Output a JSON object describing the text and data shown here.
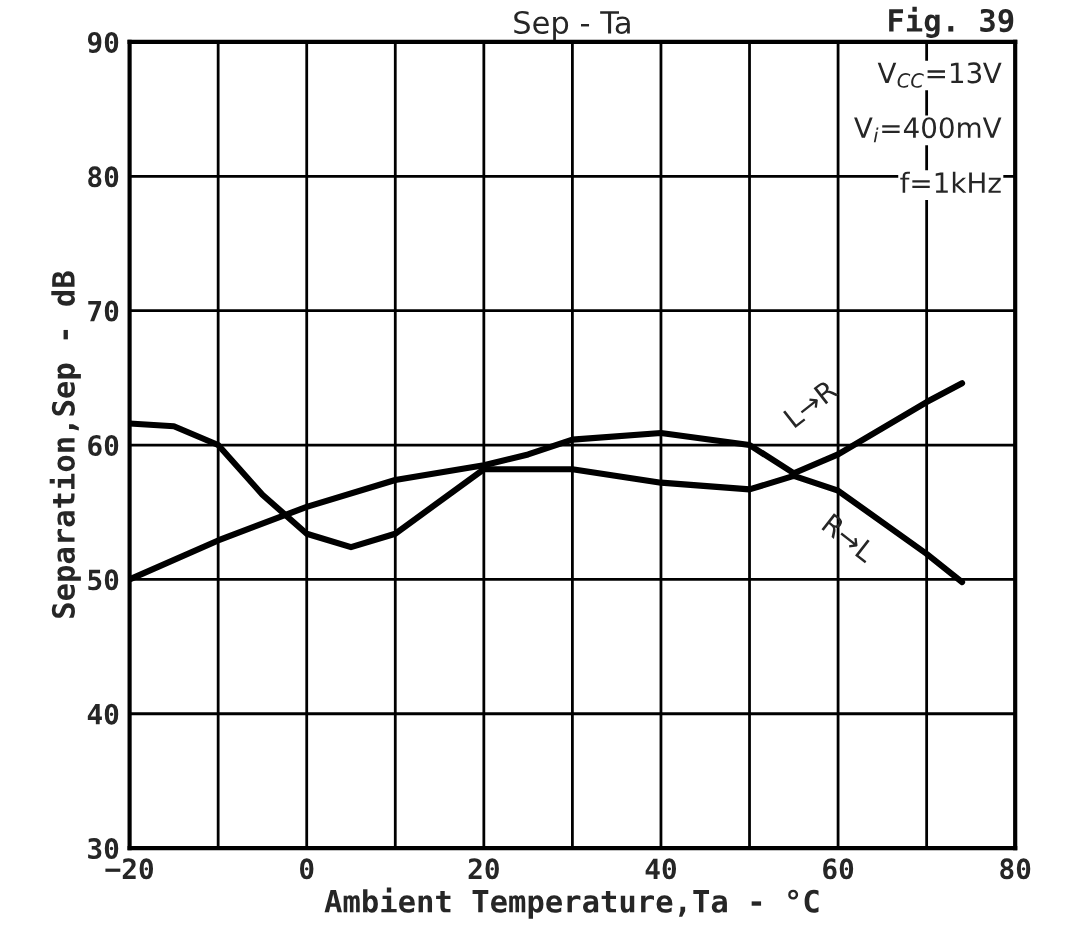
{
  "chart_data": {
    "type": "line",
    "title": "Sep - Ta",
    "xlabel": "Ambient Temperature,Ta - °C",
    "ylabel": "Separation,Sep - dB",
    "xlim": [
      -20,
      80
    ],
    "ylim": [
      30,
      90
    ],
    "xticks": [
      -20,
      {
        "value": -10,
        "label": null
      },
      0,
      {
        "value": 10,
        "label": null
      },
      20,
      {
        "value": 30,
        "label": null
      },
      40,
      {
        "value": 50,
        "label": null
      },
      60,
      {
        "value": 70,
        "label": null
      },
      80
    ],
    "yticks": [
      30,
      40,
      50,
      60,
      70,
      80,
      90
    ],
    "grid": true,
    "marker": "none",
    "line_style": "solid",
    "series": [
      {
        "name": "L→R",
        "color": "#000000",
        "x": [
          -20,
          -10,
          0,
          10,
          20,
          25,
          30,
          40,
          50,
          55,
          60,
          70,
          74
        ],
        "values": [
          50,
          52.9,
          55.4,
          57.4,
          58.5,
          59.3,
          60.4,
          60.9,
          60.0,
          57.9,
          59.3,
          63.2,
          64.6
        ]
      },
      {
        "name": "R→L",
        "color": "#000000",
        "x": [
          -20,
          -15,
          -10,
          -5,
          0,
          5,
          10,
          20,
          30,
          40,
          50,
          55,
          60,
          70,
          74
        ],
        "values": [
          61.6,
          61.4,
          60.0,
          56.3,
          53.4,
          52.4,
          53.4,
          58.2,
          58.2,
          57.2,
          56.7,
          57.7,
          56.6,
          51.9,
          49.8
        ]
      }
    ],
    "annotations": [
      "Fig. 39",
      "V$_{CC}$=13V",
      "V$_{i}$=400mV",
      "f=1kHz"
    ]
  }
}
